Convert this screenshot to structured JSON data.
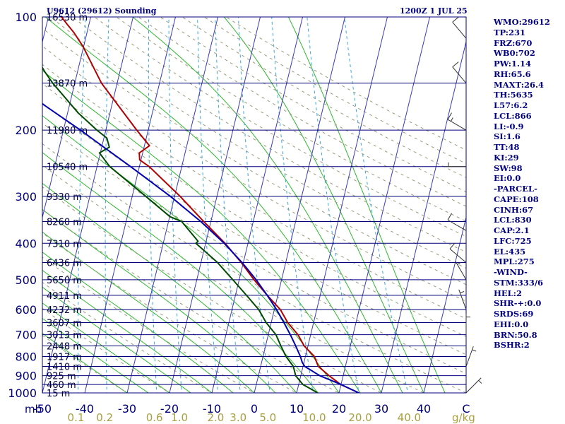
{
  "header": {
    "station": "U9612 (29612) Sounding",
    "time": "1200Z  1 JUL 25"
  },
  "indices": [
    "WMO:29612",
    "TP:231",
    "FRZ:670",
    "WB0:702",
    "PW:1.14",
    "RH:65.6",
    "MAXT:26.4",
    "TH:5635",
    "L57:6.2",
    "LCL:866",
    "LI:-0.9",
    "SI:1.6",
    "TT:48",
    "KI:29",
    "SW:98",
    "EI:0.0",
    "-PARCEL-",
    "CAPE:108",
    "CINH:67",
    "LCL:830",
    "CAP:2.1",
    "LFC:725",
    "EL:435",
    "MPL:275",
    "-WIND-",
    "STM:333/6",
    "HEL:2",
    "SHR-+:0.0",
    "SRDS:69",
    "EHI:0.0",
    "BRN:50.8",
    "BSHR:2"
  ],
  "colors": {
    "isobar": "#00007a",
    "isotherm": "#3a3ab8",
    "dry_adiabat": "#9a9a7a",
    "moist_adiabat": "#2db82d",
    "mixing_ratio": "#38a8e0",
    "temperature": "#b00000",
    "dewpoint": "#004a00",
    "parcel": "#0000b0",
    "wind": "#303030"
  },
  "chart_data": {
    "type": "skew-t",
    "title": "U9612 (29612) Sounding",
    "xlabel": "",
    "ylabel": "mb",
    "pressure_axis": {
      "log_scale": true,
      "ylim": [
        1000,
        100
      ]
    },
    "x_axis": {
      "xlim": [
        -50,
        50
      ]
    },
    "pressure_ticks": [
      100,
      200,
      300,
      400,
      500,
      600,
      700,
      800,
      900,
      1000
    ],
    "pressure_tick_labels": [
      "100",
      "200",
      "300",
      "400",
      "500",
      "600",
      "700",
      "800",
      "900",
      "1000"
    ],
    "temperature_ticks": [
      -50,
      -40,
      -30,
      -20,
      -10,
      0,
      10,
      20,
      30,
      40,
      50
    ],
    "temperature_tick_labels": [
      "-50",
      "-40",
      "-30",
      "-20",
      "-10",
      "0",
      "10",
      "20",
      "30",
      "40",
      "C"
    ],
    "mixing_ratio_ticks": [
      0.1,
      0.2,
      0.6,
      1.0,
      2.0,
      3.0,
      5.0,
      10.0,
      20.0,
      40.0
    ],
    "mixing_ratio_tick_labels": [
      "0.1",
      "0.2",
      "0.6",
      "1.0",
      "2.0",
      "3.0",
      "5.0",
      "10.0",
      "20.0",
      "40.0"
    ],
    "mixing_ratio_unit": "g/kg",
    "heights": [
      {
        "p": 100,
        "label": "16530 m"
      },
      {
        "p": 150,
        "label": "13870 m"
      },
      {
        "p": 200,
        "label": "11980 m"
      },
      {
        "p": 250,
        "label": "10540 m"
      },
      {
        "p": 300,
        "label": "9330 m"
      },
      {
        "p": 350,
        "label": "8260 m"
      },
      {
        "p": 400,
        "label": "7310 m"
      },
      {
        "p": 450,
        "label": "6436 m"
      },
      {
        "p": 500,
        "label": "5650 m"
      },
      {
        "p": 550,
        "label": "4911 m"
      },
      {
        "p": 600,
        "label": "4232 m"
      },
      {
        "p": 650,
        "label": "3607 m"
      },
      {
        "p": 700,
        "label": "3013 m"
      },
      {
        "p": 750,
        "label": "2448 m"
      },
      {
        "p": 800,
        "label": "1917 m"
      },
      {
        "p": 850,
        "label": "1410 m"
      },
      {
        "p": 900,
        "label": "925 m"
      },
      {
        "p": 950,
        "label": "460 m"
      },
      {
        "p": 1000,
        "label": "15 m"
      }
    ],
    "series": [
      {
        "key": "temperature",
        "points": [
          [
            1000,
            24.7
          ],
          [
            950,
            19.9
          ],
          [
            900,
            16.7
          ],
          [
            850,
            13.6
          ],
          [
            800,
            12.1
          ],
          [
            750,
            9.1
          ],
          [
            700,
            7.0
          ],
          [
            650,
            3.9
          ],
          [
            600,
            1.4
          ],
          [
            550,
            -2.5
          ],
          [
            500,
            -6.5
          ],
          [
            450,
            -10.5
          ],
          [
            400,
            -15.4
          ],
          [
            350,
            -21.7
          ],
          [
            300,
            -28.7
          ],
          [
            250,
            -37.7
          ],
          [
            240,
            -40.3
          ],
          [
            230,
            -40.8
          ],
          [
            220,
            -38.8
          ],
          [
            200,
            -42.7
          ],
          [
            150,
            -53.7
          ],
          [
            120,
            -60.1
          ],
          [
            110,
            -63.1
          ],
          [
            105,
            -65.0
          ],
          [
            100,
            -66.9
          ]
        ]
      },
      {
        "key": "dewpoint",
        "points": [
          [
            1000,
            15.0
          ],
          [
            950,
            11.0
          ],
          [
            900,
            8.8
          ],
          [
            850,
            7.7
          ],
          [
            800,
            5.4
          ],
          [
            750,
            3.6
          ],
          [
            700,
            1.8
          ],
          [
            650,
            -1.2
          ],
          [
            600,
            -3.7
          ],
          [
            550,
            -7.4
          ],
          [
            500,
            -11.5
          ],
          [
            450,
            -16.1
          ],
          [
            400,
            -22.3
          ],
          [
            395,
            -21.9
          ],
          [
            350,
            -26.9
          ],
          [
            340,
            -29.9
          ],
          [
            300,
            -36.8
          ],
          [
            250,
            -47.0
          ],
          [
            230,
            -50.2
          ],
          [
            222,
            -48.2
          ],
          [
            210,
            -49.3
          ],
          [
            200,
            -52.1
          ],
          [
            180,
            -57.5
          ],
          [
            150,
            -65.2
          ],
          [
            140,
            -67.7
          ],
          [
            120,
            -72.6
          ],
          [
            105,
            -76.4
          ],
          [
            100,
            -78.1
          ]
        ]
      },
      {
        "key": "parcel",
        "points": [
          [
            1000,
            24.7
          ],
          [
            950,
            20.0
          ],
          [
            900,
            14.5
          ],
          [
            850,
            10.4
          ],
          [
            830,
            9.6
          ],
          [
            800,
            8.8
          ],
          [
            750,
            7.1
          ],
          [
            700,
            5.2
          ],
          [
            650,
            3.0
          ],
          [
            600,
            0.5
          ],
          [
            550,
            -2.5
          ],
          [
            500,
            -6.0
          ],
          [
            450,
            -10.3
          ],
          [
            400,
            -15.6
          ],
          [
            350,
            -22.4
          ],
          [
            300,
            -31.0
          ],
          [
            250,
            -42.1
          ],
          [
            200,
            -56.0
          ],
          [
            150,
            -74.7
          ],
          [
            110,
            -93.0
          ]
        ]
      }
    ],
    "wind_barbs": [
      {
        "p": 114,
        "dir": 320,
        "spd": 10
      },
      {
        "p": 150,
        "dir": 320,
        "spd": 10
      },
      {
        "p": 200,
        "dir": 300,
        "spd": 15
      },
      {
        "p": 250,
        "dir": 270,
        "spd": 5
      },
      {
        "p": 370,
        "dir": 300,
        "spd": 10
      },
      {
        "p": 450,
        "dir": 310,
        "spd": 10
      },
      {
        "p": 500,
        "dir": 330,
        "spd": 5
      },
      {
        "p": 600,
        "dir": 340,
        "spd": 5
      },
      {
        "p": 700,
        "dir": 360,
        "spd": 5
      },
      {
        "p": 850,
        "dir": 20,
        "spd": 5
      },
      {
        "p": 1000,
        "dir": 45,
        "spd": 5
      }
    ]
  }
}
